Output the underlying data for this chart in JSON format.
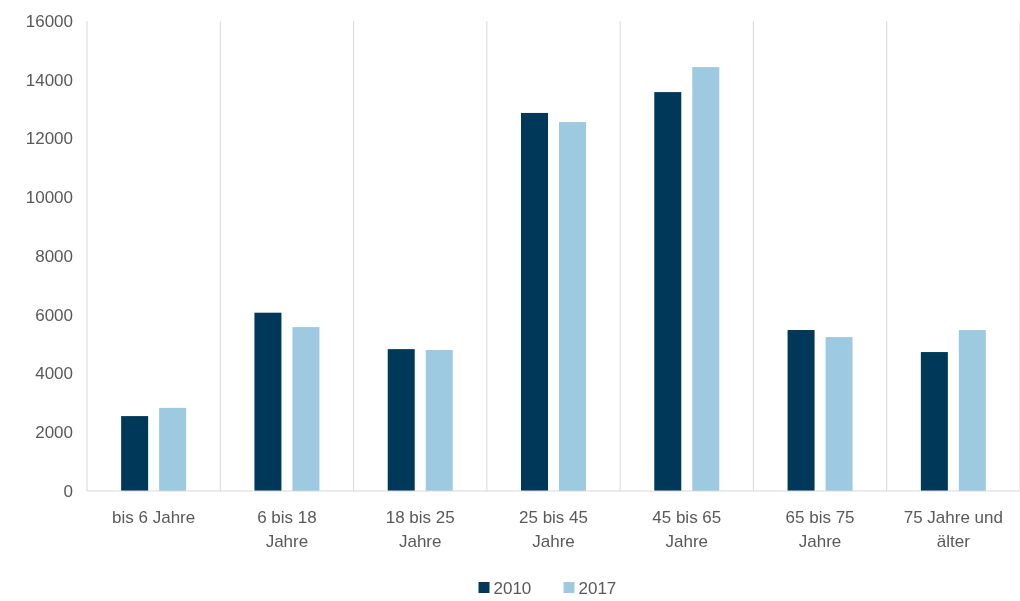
{
  "chart_data": {
    "type": "bar",
    "categories": [
      "bis 6 Jahre",
      "6 bis 18 Jahre",
      "18 bis 25 Jahre",
      "25 bis 45 Jahre",
      "45 bis 65 Jahre",
      "65 bis 75 Jahre",
      "75 Jahre und älter"
    ],
    "series": [
      {
        "name": "2010",
        "color": "#003859",
        "values": [
          2550,
          6070,
          4830,
          12870,
          13580,
          5480,
          4730
        ]
      },
      {
        "name": "2017",
        "color": "#9ecae1",
        "values": [
          2830,
          5580,
          4800,
          12560,
          14430,
          5240,
          5480
        ]
      }
    ],
    "ylim": [
      0,
      16000
    ],
    "yticks": [
      0,
      2000,
      4000,
      6000,
      8000,
      10000,
      12000,
      14000,
      16000
    ],
    "grid": "x",
    "legend": "bottom"
  }
}
